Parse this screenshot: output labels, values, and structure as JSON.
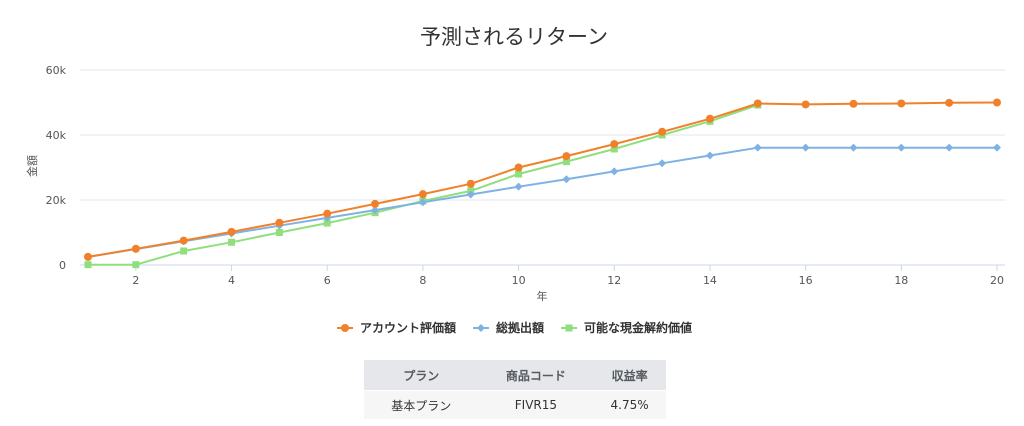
{
  "chart_data": {
    "type": "line",
    "title": "予測されるリターン",
    "xlabel": "年",
    "ylabel": "金額",
    "x": [
      1,
      2,
      3,
      4,
      5,
      6,
      7,
      8,
      9,
      10,
      11,
      12,
      13,
      14,
      15,
      16,
      17,
      18,
      19,
      20
    ],
    "xlim": [
      1,
      20
    ],
    "xticks": [
      2,
      4,
      6,
      8,
      10,
      12,
      14,
      16,
      18,
      20
    ],
    "xtick_labels": [
      "2",
      "4",
      "6",
      "8",
      "10",
      "12",
      "14",
      "16",
      "18",
      "20"
    ],
    "ylim": [
      0,
      60000
    ],
    "yticks": [
      0,
      20000,
      40000,
      60000
    ],
    "ytick_labels": [
      "0",
      "20k",
      "40k",
      "60k"
    ],
    "grid": true,
    "legend_position": "bottom-center",
    "series": [
      {
        "name": "アカウント評価額",
        "color": "#f0812a",
        "marker": "circle",
        "values": [
          2500,
          5000,
          7500,
          10200,
          13000,
          15800,
          18800,
          21800,
          25000,
          30000,
          33500,
          37200,
          41000,
          45000,
          49700,
          49400,
          49600,
          49700,
          49900,
          50000
        ]
      },
      {
        "name": "総拠出額",
        "color": "#7fb2e3",
        "marker": "diamond",
        "values": [
          2500,
          4900,
          7300,
          9700,
          12100,
          14500,
          16900,
          19300,
          21700,
          24100,
          26400,
          28800,
          31300,
          33700,
          36100,
          36100,
          36100,
          36100,
          36100,
          36100
        ]
      },
      {
        "name": "可能な現金解約価値",
        "color": "#8fe07d",
        "marker": "square",
        "values": [
          100,
          100,
          4300,
          7000,
          10000,
          12900,
          16100,
          19700,
          22800,
          28000,
          31800,
          35700,
          40000,
          44200,
          49200,
          null,
          null,
          null,
          null,
          null
        ]
      }
    ]
  },
  "table": {
    "headers": [
      "プラン",
      "商品コード",
      "収益率"
    ],
    "rows": [
      [
        "基本プラン",
        "FIVR15",
        "4.75%"
      ]
    ]
  }
}
